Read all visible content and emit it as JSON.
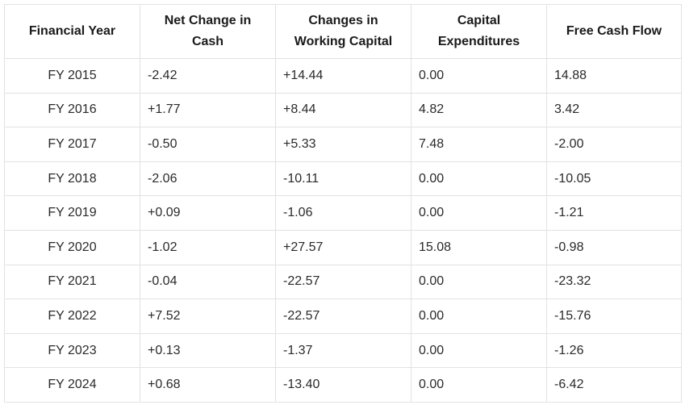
{
  "table": {
    "headers": [
      "Financial Year",
      "Net Change in Cash",
      "Changes in Working Capital",
      "Capital Expenditures",
      "Free Cash Flow"
    ],
    "rows": [
      [
        "FY 2015",
        "-2.42",
        "+14.44",
        "0.00",
        "14.88"
      ],
      [
        "FY 2016",
        "+1.77",
        "+8.44",
        "4.82",
        "3.42"
      ],
      [
        "FY 2017",
        "-0.50",
        "+5.33",
        "7.48",
        "-2.00"
      ],
      [
        "FY 2018",
        "-2.06",
        "-10.11",
        "0.00",
        "-10.05"
      ],
      [
        "FY 2019",
        "+0.09",
        "-1.06",
        "0.00",
        "-1.21"
      ],
      [
        "FY 2020",
        "-1.02",
        "+27.57",
        "15.08",
        "-0.98"
      ],
      [
        "FY 2021",
        "-0.04",
        "-22.57",
        "0.00",
        "-23.32"
      ],
      [
        "FY 2022",
        "+7.52",
        "-22.57",
        "0.00",
        "-15.76"
      ],
      [
        "FY 2023",
        "+0.13",
        "-1.37",
        "0.00",
        "-1.26"
      ],
      [
        "FY 2024",
        "+0.68",
        "-13.40",
        "0.00",
        "-6.42"
      ]
    ]
  }
}
